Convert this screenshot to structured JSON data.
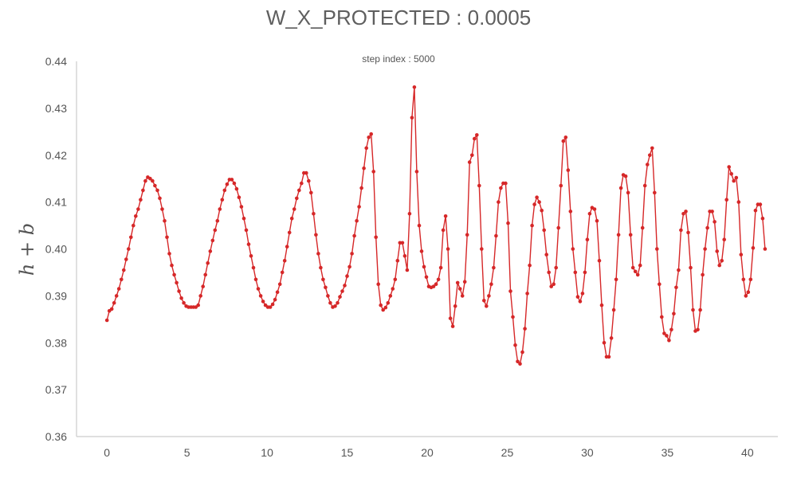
{
  "chart_data": {
    "type": "line",
    "title": "W_X_PROTECTED : 0.0005",
    "subtitle": "step index : 5000",
    "xlabel": "",
    "ylabel": "h + b",
    "xlim": [
      -1.9,
      41.9
    ],
    "ylim": [
      0.36,
      0.44
    ],
    "xticks": [
      0,
      5,
      10,
      15,
      20,
      25,
      30,
      35,
      40
    ],
    "yticks": [
      0.36,
      0.37,
      0.38,
      0.39,
      0.4,
      0.41,
      0.42,
      0.43,
      0.44
    ],
    "ytick_labels": [
      "0.36",
      "0.37",
      "0.38",
      "0.39",
      "0.40",
      "0.41",
      "0.42",
      "0.43",
      "0.44"
    ],
    "grid": false,
    "legend": "none",
    "series": [
      {
        "color": "#d62728",
        "marker": "circle",
        "points": [
          [
            0.0,
            0.3848
          ],
          [
            0.15,
            0.3868
          ],
          [
            0.3,
            0.3872
          ],
          [
            0.45,
            0.3885
          ],
          [
            0.6,
            0.39
          ],
          [
            0.75,
            0.3915
          ],
          [
            0.9,
            0.3935
          ],
          [
            1.05,
            0.3955
          ],
          [
            1.2,
            0.3978
          ],
          [
            1.35,
            0.4
          ],
          [
            1.5,
            0.4025
          ],
          [
            1.65,
            0.405
          ],
          [
            1.8,
            0.407
          ],
          [
            1.95,
            0.4085
          ],
          [
            2.1,
            0.4105
          ],
          [
            2.25,
            0.4125
          ],
          [
            2.4,
            0.4145
          ],
          [
            2.55,
            0.4153
          ],
          [
            2.7,
            0.415
          ],
          [
            2.85,
            0.4145
          ],
          [
            3.0,
            0.4135
          ],
          [
            3.15,
            0.4125
          ],
          [
            3.3,
            0.4108
          ],
          [
            3.45,
            0.4085
          ],
          [
            3.6,
            0.406
          ],
          [
            3.75,
            0.4025
          ],
          [
            3.9,
            0.399
          ],
          [
            4.05,
            0.3965
          ],
          [
            4.2,
            0.3945
          ],
          [
            4.35,
            0.3928
          ],
          [
            4.5,
            0.391
          ],
          [
            4.65,
            0.3895
          ],
          [
            4.8,
            0.3885
          ],
          [
            4.95,
            0.3878
          ],
          [
            5.1,
            0.3876
          ],
          [
            5.25,
            0.3876
          ],
          [
            5.4,
            0.3876
          ],
          [
            5.55,
            0.3876
          ],
          [
            5.7,
            0.388
          ],
          [
            5.85,
            0.39
          ],
          [
            6.0,
            0.392
          ],
          [
            6.15,
            0.3945
          ],
          [
            6.3,
            0.397
          ],
          [
            6.45,
            0.3995
          ],
          [
            6.6,
            0.4018
          ],
          [
            6.75,
            0.404
          ],
          [
            6.9,
            0.406
          ],
          [
            7.05,
            0.4085
          ],
          [
            7.2,
            0.4105
          ],
          [
            7.35,
            0.4125
          ],
          [
            7.5,
            0.4138
          ],
          [
            7.65,
            0.4148
          ],
          [
            7.8,
            0.4148
          ],
          [
            7.95,
            0.414
          ],
          [
            8.1,
            0.4128
          ],
          [
            8.25,
            0.411
          ],
          [
            8.4,
            0.409
          ],
          [
            8.55,
            0.4065
          ],
          [
            8.7,
            0.404
          ],
          [
            8.85,
            0.401
          ],
          [
            9.0,
            0.3985
          ],
          [
            9.15,
            0.396
          ],
          [
            9.3,
            0.3935
          ],
          [
            9.45,
            0.3915
          ],
          [
            9.6,
            0.39
          ],
          [
            9.75,
            0.3888
          ],
          [
            9.9,
            0.388
          ],
          [
            10.05,
            0.3876
          ],
          [
            10.2,
            0.3876
          ],
          [
            10.35,
            0.3882
          ],
          [
            10.5,
            0.3892
          ],
          [
            10.65,
            0.3908
          ],
          [
            10.8,
            0.3925
          ],
          [
            10.95,
            0.395
          ],
          [
            11.1,
            0.3975
          ],
          [
            11.25,
            0.4005
          ],
          [
            11.4,
            0.4035
          ],
          [
            11.55,
            0.4065
          ],
          [
            11.7,
            0.4085
          ],
          [
            11.85,
            0.4108
          ],
          [
            12.0,
            0.4125
          ],
          [
            12.15,
            0.414
          ],
          [
            12.3,
            0.4162
          ],
          [
            12.45,
            0.4162
          ],
          [
            12.6,
            0.4145
          ],
          [
            12.75,
            0.412
          ],
          [
            12.9,
            0.4075
          ],
          [
            13.05,
            0.403
          ],
          [
            13.2,
            0.399
          ],
          [
            13.35,
            0.396
          ],
          [
            13.5,
            0.3935
          ],
          [
            13.65,
            0.3918
          ],
          [
            13.8,
            0.39
          ],
          [
            13.95,
            0.3885
          ],
          [
            14.1,
            0.3876
          ],
          [
            14.25,
            0.3878
          ],
          [
            14.4,
            0.3885
          ],
          [
            14.55,
            0.3898
          ],
          [
            14.7,
            0.391
          ],
          [
            14.85,
            0.3922
          ],
          [
            15.0,
            0.3942
          ],
          [
            15.15,
            0.3962
          ],
          [
            15.3,
            0.399
          ],
          [
            15.45,
            0.4028
          ],
          [
            15.6,
            0.406
          ],
          [
            15.75,
            0.409
          ],
          [
            15.9,
            0.413
          ],
          [
            16.05,
            0.4172
          ],
          [
            16.2,
            0.4215
          ],
          [
            16.35,
            0.4238
          ],
          [
            16.5,
            0.4245
          ],
          [
            16.65,
            0.4165
          ],
          [
            16.8,
            0.4025
          ],
          [
            16.95,
            0.3925
          ],
          [
            17.1,
            0.388
          ],
          [
            17.25,
            0.387
          ],
          [
            17.4,
            0.3875
          ],
          [
            17.55,
            0.3885
          ],
          [
            17.7,
            0.39
          ],
          [
            17.85,
            0.3915
          ],
          [
            18.0,
            0.3935
          ],
          [
            18.15,
            0.3975
          ],
          [
            18.3,
            0.4013
          ],
          [
            18.45,
            0.4013
          ],
          [
            18.6,
            0.3985
          ],
          [
            18.75,
            0.3955
          ],
          [
            18.9,
            0.4075
          ],
          [
            19.05,
            0.428
          ],
          [
            19.2,
            0.4345
          ],
          [
            19.35,
            0.4165
          ],
          [
            19.5,
            0.405
          ],
          [
            19.65,
            0.3995
          ],
          [
            19.8,
            0.3962
          ],
          [
            19.95,
            0.394
          ],
          [
            20.1,
            0.392
          ],
          [
            20.25,
            0.3918
          ],
          [
            20.4,
            0.392
          ],
          [
            20.55,
            0.3925
          ],
          [
            20.7,
            0.3935
          ],
          [
            20.85,
            0.396
          ],
          [
            21.0,
            0.404
          ],
          [
            21.15,
            0.407
          ],
          [
            21.3,
            0.4
          ],
          [
            21.45,
            0.3852
          ],
          [
            21.6,
            0.3835
          ],
          [
            21.75,
            0.3878
          ],
          [
            21.9,
            0.3928
          ],
          [
            22.05,
            0.3915
          ],
          [
            22.2,
            0.39
          ],
          [
            22.35,
            0.393
          ],
          [
            22.5,
            0.403
          ],
          [
            22.65,
            0.4185
          ],
          [
            22.8,
            0.42
          ],
          [
            22.95,
            0.4235
          ],
          [
            23.1,
            0.4243
          ],
          [
            23.25,
            0.4135
          ],
          [
            23.4,
            0.4
          ],
          [
            23.55,
            0.389
          ],
          [
            23.7,
            0.3878
          ],
          [
            23.85,
            0.39
          ],
          [
            24.0,
            0.3925
          ],
          [
            24.15,
            0.396
          ],
          [
            24.3,
            0.4028
          ],
          [
            24.45,
            0.41
          ],
          [
            24.6,
            0.413
          ],
          [
            24.75,
            0.414
          ],
          [
            24.9,
            0.414
          ],
          [
            25.05,
            0.4055
          ],
          [
            25.2,
            0.391
          ],
          [
            25.35,
            0.3855
          ],
          [
            25.5,
            0.3795
          ],
          [
            25.65,
            0.376
          ],
          [
            25.8,
            0.3755
          ],
          [
            25.95,
            0.378
          ],
          [
            26.1,
            0.383
          ],
          [
            26.25,
            0.3905
          ],
          [
            26.4,
            0.3965
          ],
          [
            26.55,
            0.405
          ],
          [
            26.7,
            0.4095
          ],
          [
            26.85,
            0.411
          ],
          [
            27.0,
            0.41
          ],
          [
            27.15,
            0.4082
          ],
          [
            27.3,
            0.404
          ],
          [
            27.45,
            0.3988
          ],
          [
            27.6,
            0.395
          ],
          [
            27.75,
            0.392
          ],
          [
            27.9,
            0.3925
          ],
          [
            28.05,
            0.396
          ],
          [
            28.2,
            0.4045
          ],
          [
            28.35,
            0.4135
          ],
          [
            28.5,
            0.423
          ],
          [
            28.65,
            0.4238
          ],
          [
            28.8,
            0.4168
          ],
          [
            28.95,
            0.408
          ],
          [
            29.1,
            0.4
          ],
          [
            29.25,
            0.395
          ],
          [
            29.4,
            0.3898
          ],
          [
            29.55,
            0.3888
          ],
          [
            29.7,
            0.3905
          ],
          [
            29.85,
            0.395
          ],
          [
            30.0,
            0.402
          ],
          [
            30.15,
            0.4075
          ],
          [
            30.3,
            0.4088
          ],
          [
            30.45,
            0.4085
          ],
          [
            30.6,
            0.406
          ],
          [
            30.75,
            0.3975
          ],
          [
            30.9,
            0.388
          ],
          [
            31.05,
            0.38
          ],
          [
            31.2,
            0.377
          ],
          [
            31.35,
            0.377
          ],
          [
            31.5,
            0.381
          ],
          [
            31.65,
            0.387
          ],
          [
            31.8,
            0.3935
          ],
          [
            31.95,
            0.403
          ],
          [
            32.1,
            0.413
          ],
          [
            32.25,
            0.4158
          ],
          [
            32.4,
            0.4155
          ],
          [
            32.55,
            0.412
          ],
          [
            32.7,
            0.403
          ],
          [
            32.85,
            0.396
          ],
          [
            33.0,
            0.3952
          ],
          [
            33.15,
            0.3945
          ],
          [
            33.3,
            0.3965
          ],
          [
            33.45,
            0.4045
          ],
          [
            33.6,
            0.4135
          ],
          [
            33.75,
            0.418
          ],
          [
            33.9,
            0.42
          ],
          [
            34.05,
            0.4215
          ],
          [
            34.2,
            0.412
          ],
          [
            34.35,
            0.4
          ],
          [
            34.5,
            0.3925
          ],
          [
            34.65,
            0.3855
          ],
          [
            34.8,
            0.382
          ],
          [
            34.95,
            0.3815
          ],
          [
            35.1,
            0.3805
          ],
          [
            35.25,
            0.3828
          ],
          [
            35.4,
            0.3862
          ],
          [
            35.55,
            0.3918
          ],
          [
            35.7,
            0.3955
          ],
          [
            35.85,
            0.404
          ],
          [
            36.0,
            0.4075
          ],
          [
            36.15,
            0.408
          ],
          [
            36.3,
            0.4035
          ],
          [
            36.45,
            0.396
          ],
          [
            36.6,
            0.387
          ],
          [
            36.75,
            0.3825
          ],
          [
            36.9,
            0.3828
          ],
          [
            37.05,
            0.387
          ],
          [
            37.2,
            0.3945
          ],
          [
            37.35,
            0.4
          ],
          [
            37.5,
            0.4045
          ],
          [
            37.65,
            0.408
          ],
          [
            37.8,
            0.408
          ],
          [
            37.95,
            0.4058
          ],
          [
            38.1,
            0.3995
          ],
          [
            38.25,
            0.3965
          ],
          [
            38.4,
            0.3975
          ],
          [
            38.55,
            0.402
          ],
          [
            38.7,
            0.4105
          ],
          [
            38.85,
            0.4175
          ],
          [
            39.0,
            0.416
          ],
          [
            39.15,
            0.4145
          ],
          [
            39.3,
            0.4152
          ],
          [
            39.45,
            0.41
          ],
          [
            39.6,
            0.3988
          ],
          [
            39.75,
            0.3935
          ],
          [
            39.9,
            0.39
          ],
          [
            40.05,
            0.3908
          ],
          [
            40.2,
            0.3935
          ],
          [
            40.35,
            0.4002
          ],
          [
            40.5,
            0.4082
          ],
          [
            40.65,
            0.4095
          ],
          [
            40.8,
            0.4095
          ],
          [
            40.95,
            0.4065
          ],
          [
            41.1,
            0.4
          ]
        ]
      }
    ]
  }
}
